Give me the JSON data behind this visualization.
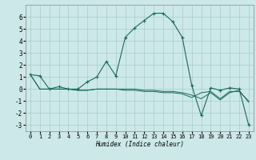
{
  "xlabel": "Humidex (Indice chaleur)",
  "background_color": "#cce8e8",
  "grid_color": "#aacccc",
  "line_color": "#1a6b5a",
  "xlim": [
    -0.5,
    23.5
  ],
  "ylim": [
    -3.5,
    7.0
  ],
  "yticks": [
    -3,
    -2,
    -1,
    0,
    1,
    2,
    3,
    4,
    5,
    6
  ],
  "xticks": [
    0,
    1,
    2,
    3,
    4,
    5,
    6,
    7,
    8,
    9,
    10,
    11,
    12,
    13,
    14,
    15,
    16,
    17,
    18,
    19,
    20,
    21,
    22,
    23
  ],
  "series1_x": [
    0,
    1,
    2,
    3,
    4,
    5,
    6,
    7,
    8,
    9,
    10,
    11,
    12,
    13,
    14,
    15,
    16,
    17,
    18,
    19,
    20,
    21,
    22,
    23
  ],
  "series1_y": [
    1.2,
    1.1,
    0.0,
    0.2,
    0.0,
    0.0,
    0.6,
    1.0,
    2.3,
    1.1,
    4.3,
    5.1,
    5.7,
    6.3,
    6.3,
    5.6,
    4.3,
    0.3,
    -2.2,
    0.1,
    -0.1,
    0.1,
    0.0,
    -3.0
  ],
  "series2_x": [
    0,
    1,
    2,
    3,
    4,
    5,
    6,
    7,
    8,
    9,
    10,
    11,
    12,
    13,
    14,
    15,
    16,
    17,
    18,
    19,
    20,
    21,
    22,
    23
  ],
  "series2_y": [
    1.2,
    0.0,
    0.0,
    0.0,
    0.0,
    -0.1,
    -0.1,
    0.0,
    0.0,
    0.0,
    -0.1,
    -0.1,
    -0.2,
    -0.2,
    -0.3,
    -0.3,
    -0.4,
    -0.7,
    -0.3,
    -0.2,
    -0.8,
    -0.2,
    -0.2,
    -1.0
  ],
  "series3_x": [
    0,
    1,
    2,
    3,
    4,
    5,
    6,
    7,
    8,
    9,
    10,
    11,
    12,
    13,
    14,
    15,
    16,
    17,
    18,
    19,
    20,
    21,
    22,
    23
  ],
  "series3_y": [
    1.2,
    0.0,
    0.0,
    0.0,
    0.0,
    -0.1,
    -0.1,
    0.0,
    0.0,
    0.0,
    0.0,
    0.0,
    -0.1,
    -0.1,
    -0.2,
    -0.2,
    -0.3,
    -0.5,
    -0.8,
    -0.3,
    -0.9,
    -0.3,
    -0.1,
    -1.1
  ],
  "tick_labelsize": 5,
  "xlabel_fontsize": 5.5
}
